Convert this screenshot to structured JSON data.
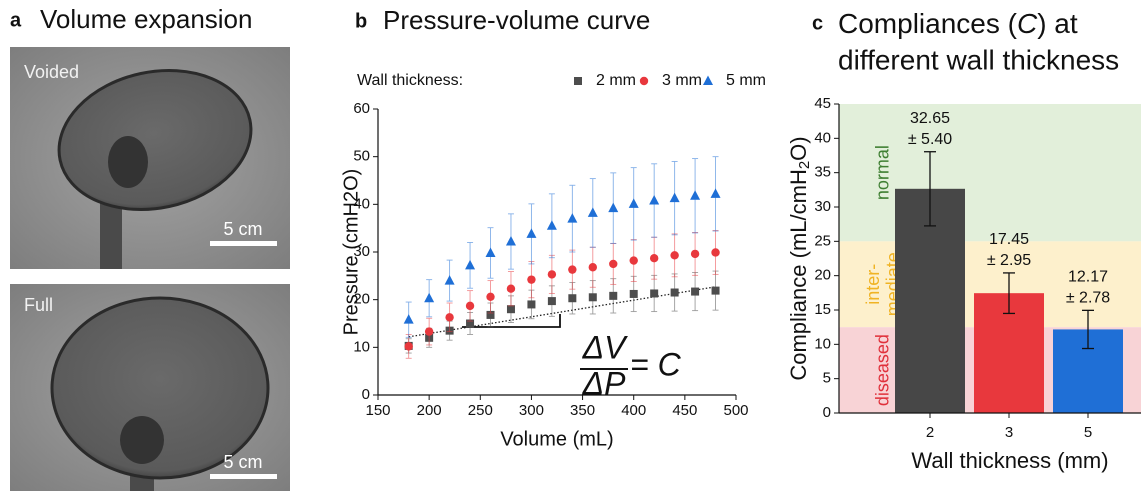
{
  "panel_a": {
    "letter": "a",
    "title": "Volume expansion",
    "images": [
      {
        "label": "Voided",
        "scale": "5 cm"
      },
      {
        "label": "Full",
        "scale": "5 cm"
      }
    ]
  },
  "chart_data": [
    {
      "type": "scatter",
      "letter": "b",
      "title": "Pressure-volume curve",
      "x_label": "Volume (mL)",
      "y_label": "Pressure (cmH2O)",
      "legend_title": "Wall thickness:",
      "x": [
        180,
        200,
        220,
        240,
        260,
        280,
        300,
        320,
        340,
        360,
        380,
        400,
        420,
        440,
        460,
        480
      ],
      "series": [
        {
          "name": "2 mm",
          "color": "#4d4d4d",
          "marker": "square",
          "values": [
            10.3,
            12.0,
            13.5,
            15.0,
            16.8,
            18.0,
            19.0,
            19.7,
            20.3,
            20.5,
            20.8,
            21.2,
            21.3,
            21.5,
            21.7,
            21.9
          ],
          "errors": [
            1.5,
            2,
            2,
            2.3,
            2.5,
            2.8,
            3,
            3.2,
            3.3,
            3.5,
            3.6,
            3.7,
            3.8,
            3.9,
            4,
            4.1
          ]
        },
        {
          "name": "3 mm",
          "color": "#e8383d",
          "marker": "circle",
          "values": [
            10.2,
            13.3,
            16.3,
            18.7,
            20.6,
            22.3,
            24.2,
            25.3,
            26.3,
            26.8,
            27.5,
            28.2,
            28.7,
            29.3,
            29.6,
            29.9
          ],
          "errors": [
            2.5,
            2.8,
            3,
            3.2,
            3.4,
            3.6,
            3.8,
            4,
            4.1,
            4.2,
            4.3,
            4.4,
            4.4,
            4.5,
            4.5,
            4.6
          ]
        },
        {
          "name": "5 mm",
          "color": "#1f6fd6",
          "marker": "triangle",
          "values": [
            15.8,
            20.3,
            24.0,
            27.2,
            29.8,
            32.2,
            33.8,
            35.5,
            37.0,
            38.2,
            39.2,
            40.1,
            40.8,
            41.3,
            41.8,
            42.2
          ],
          "errors": [
            3.7,
            3.9,
            4.3,
            4.8,
            5.3,
            5.8,
            6.3,
            6.7,
            7,
            7.2,
            7.4,
            7.6,
            7.7,
            7.7,
            7.8,
            7.8
          ]
        }
      ],
      "trend_line": {
        "x": [
          180,
          480
        ],
        "values": [
          12.2,
          22.7
        ]
      },
      "annotation": {
        "numerator": "ΔV",
        "denominator": "ΔP",
        "rest": "= C"
      },
      "xlim": [
        150,
        500
      ],
      "xticks": [
        150,
        200,
        250,
        300,
        350,
        400,
        450,
        500
      ],
      "ylim": [
        0,
        60
      ],
      "yticks": [
        0,
        10,
        20,
        30,
        40,
        50,
        60
      ]
    },
    {
      "type": "bar",
      "letter": "c",
      "title": [
        "Compliances (",
        "C",
        ") at",
        "different wall thickness"
      ],
      "x_label": "Wall thickness (mm)",
      "y_label": [
        "Compliance (mL/cmH",
        "2",
        "O)"
      ],
      "categories": [
        "2",
        "3",
        "5"
      ],
      "values": [
        32.65,
        17.45,
        12.17
      ],
      "errors": [
        5.4,
        2.95,
        2.78
      ],
      "error_labels": [
        "± 5.40",
        "± 2.95",
        "± 2.78"
      ],
      "colors": [
        "#474747",
        "#e8383d",
        "#1f6fd6"
      ],
      "zones": [
        {
          "label": [
            "normal"
          ],
          "from": 25,
          "to": 45,
          "color": "#e2efda",
          "text_color": "#3f7f32"
        },
        {
          "label": [
            "inter-",
            "mediate"
          ],
          "from": 12.5,
          "to": 25,
          "color": "#fdf0cc",
          "text_color": "#f0b323"
        },
        {
          "label": [
            "diseased"
          ],
          "from": 0,
          "to": 12.5,
          "color": "#f8d3d6",
          "text_color": "#e0303a"
        }
      ],
      "ylim": [
        0,
        45
      ],
      "yticks": [
        0,
        5,
        10,
        15,
        20,
        25,
        30,
        35,
        40,
        45
      ]
    }
  ]
}
